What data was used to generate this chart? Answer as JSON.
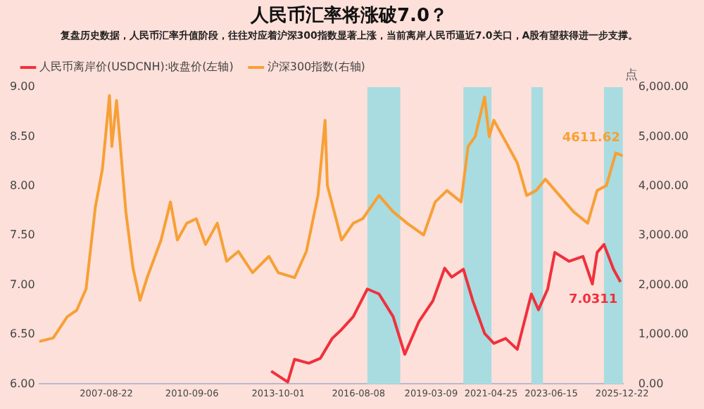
{
  "chart_data": {
    "type": "line",
    "title": "人民币汇率将涨破7.0？",
    "subtitle": "复盘历史数据，人民币汇率升值阶段，往往对应着沪深300指数显著上涨，当前离岸人民币逼近7.0关口，A股有望获得进一步支撑。",
    "y2label": "点",
    "legend": "top left",
    "grid": false,
    "marker": "none",
    "line_style": "solid",
    "xlim": [
      "2005-04",
      "2026-01"
    ],
    "xticks": [
      "2007-08-22",
      "2010-09-06",
      "2013-10-01",
      "2016-08-08",
      "2019-03-09",
      "2021-04-25",
      "2023-06-15",
      "2025-12-22"
    ],
    "ylim": [
      6,
      9
    ],
    "yticks": [
      {
        "value": 6,
        "label": "6.00"
      },
      {
        "value": 6.5,
        "label": "6.50"
      },
      {
        "value": 7,
        "label": "7.00"
      },
      {
        "value": 7.5,
        "label": "7.50"
      },
      {
        "value": 8,
        "label": "8.00"
      },
      {
        "value": 8.5,
        "label": "8.50"
      },
      {
        "value": 9,
        "label": "9.00"
      }
    ],
    "y2lim": [
      0,
      6000
    ],
    "y2ticks": [
      {
        "value": 0,
        "label": "0.00"
      },
      {
        "value": 1000,
        "label": "1,000.00"
      },
      {
        "value": 2000,
        "label": "2,000.00"
      },
      {
        "value": 3000,
        "label": "3,000.00"
      },
      {
        "value": 4000,
        "label": "4,000.00"
      },
      {
        "value": 5000,
        "label": "5,000.00"
      },
      {
        "value": 6000,
        "label": "6,000.00"
      }
    ],
    "bands": [
      {
        "axis": "x",
        "from": "2016-12",
        "to": "2018-02",
        "color": "#a8dce1"
      },
      {
        "axis": "x",
        "from": "2020-05",
        "to": "2021-05",
        "color": "#a8dce1"
      },
      {
        "axis": "x",
        "from": "2022-10",
        "to": "2023-03",
        "color": "#a8dce1"
      },
      {
        "axis": "x",
        "from": "2025-05",
        "to": "2026-01",
        "color": "#a8dce1"
      }
    ],
    "series": [
      {
        "name": "人民币离岸价(USDCNH):收盘价(左轴)",
        "color": "#f0303c",
        "x": [
          "2013-07",
          "2014-02",
          "2014-05",
          "2014-11",
          "2015-04",
          "2015-09",
          "2016-01",
          "2016-06",
          "2016-12",
          "2017-05",
          "2017-11",
          "2018-04",
          "2018-10",
          "2019-04",
          "2019-09",
          "2019-12",
          "2020-05",
          "2020-09",
          "2021-02",
          "2021-06",
          "2021-11",
          "2022-04",
          "2022-10",
          "2023-01",
          "2023-05",
          "2023-08",
          "2024-02",
          "2024-08",
          "2024-12",
          "2025-02",
          "2025-05",
          "2025-09",
          "2025-12"
        ],
        "values": [
          6.13,
          6.02,
          6.25,
          6.21,
          6.26,
          6.46,
          6.55,
          6.68,
          6.96,
          6.91,
          6.68,
          6.3,
          6.63,
          6.84,
          7.17,
          7.08,
          7.16,
          6.84,
          6.51,
          6.41,
          6.46,
          6.35,
          6.91,
          6.75,
          6.96,
          7.33,
          7.24,
          7.29,
          7.01,
          7.33,
          7.41,
          7.16,
          7.0311
        ],
        "value_labels": [
          null,
          null,
          null,
          null,
          null,
          null,
          null,
          null,
          null,
          null,
          null,
          null,
          null,
          null,
          null,
          null,
          null,
          null,
          null,
          null,
          null,
          null,
          null,
          null,
          null,
          null,
          null,
          null,
          null,
          null,
          null,
          null,
          "7.0311"
        ]
      },
      {
        "name": "沪深300指数(右轴)",
        "color": "#f7a035",
        "axis": "y2",
        "x": [
          "2005-04",
          "2005-10",
          "2006-04",
          "2006-08",
          "2006-12",
          "2007-04",
          "2007-07",
          "2007-10",
          "2007-11",
          "2008-01",
          "2008-05",
          "2008-08",
          "2008-11",
          "2009-02",
          "2009-08",
          "2009-12",
          "2010-03",
          "2010-07",
          "2010-11",
          "2011-03",
          "2011-08",
          "2011-12",
          "2012-05",
          "2012-11",
          "2013-06",
          "2013-10",
          "2014-05",
          "2014-10",
          "2015-03",
          "2015-06",
          "2015-07",
          "2016-01",
          "2016-06",
          "2016-10",
          "2017-05",
          "2017-11",
          "2018-05",
          "2018-12",
          "2019-05",
          "2019-10",
          "2020-04",
          "2020-07",
          "2020-10",
          "2021-02",
          "2021-04",
          "2021-06",
          "2021-11",
          "2022-04",
          "2022-08",
          "2022-12",
          "2023-04",
          "2023-10",
          "2024-04",
          "2024-10",
          "2025-02",
          "2025-06",
          "2025-10",
          "2026-01"
        ],
        "values": [
          860,
          930,
          1360,
          1490,
          1920,
          3580,
          4340,
          5830,
          4800,
          5730,
          3480,
          2350,
          1690,
          2150,
          2910,
          3680,
          2910,
          3250,
          3340,
          2820,
          3250,
          2480,
          2680,
          2250,
          2580,
          2250,
          2150,
          2680,
          3810,
          5330,
          4010,
          2910,
          3250,
          3340,
          3810,
          3480,
          3250,
          3010,
          3680,
          3910,
          3680,
          4800,
          5000,
          5800,
          5000,
          5330,
          4900,
          4470,
          3810,
          3910,
          4140,
          3810,
          3480,
          3250,
          3910,
          4010,
          4670,
          4611.62
        ],
        "value_labels": [
          null,
          null,
          null,
          null,
          null,
          null,
          null,
          null,
          null,
          null,
          null,
          null,
          null,
          null,
          null,
          null,
          null,
          null,
          null,
          null,
          null,
          null,
          null,
          null,
          null,
          null,
          null,
          null,
          null,
          null,
          null,
          null,
          null,
          null,
          null,
          null,
          null,
          null,
          null,
          null,
          null,
          null,
          null,
          null,
          null,
          null,
          null,
          null,
          null,
          null,
          null,
          null,
          null,
          null,
          null,
          null,
          null,
          "4611.62"
        ]
      }
    ]
  }
}
